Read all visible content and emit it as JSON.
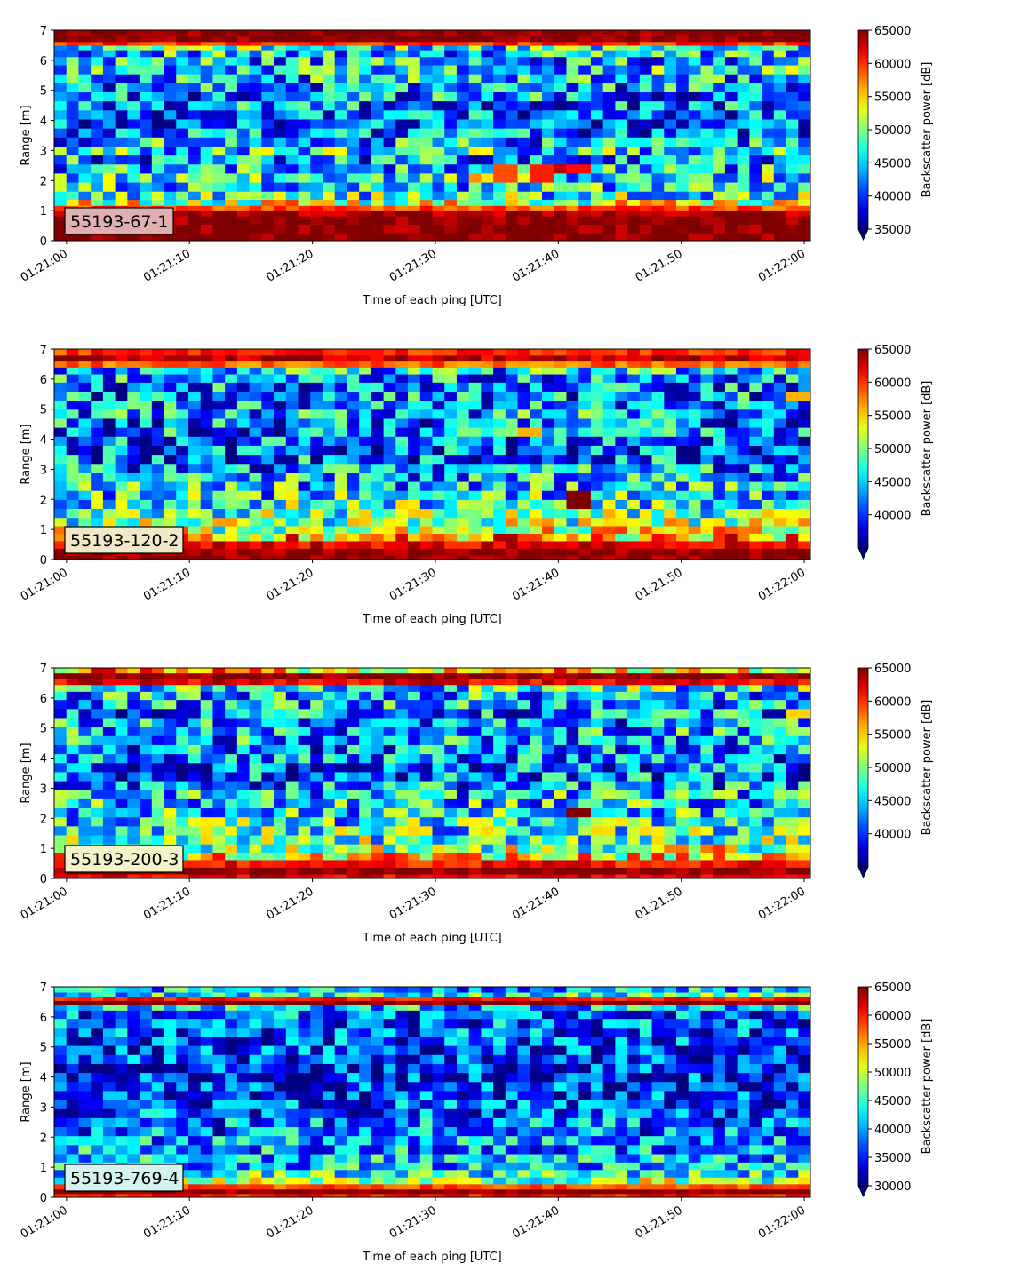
{
  "figure": {
    "colormap": "jet",
    "panels": [
      {
        "label": "55193-67-1",
        "label_box_color": "#e0b0b0"
      },
      {
        "label": "55193-120-2",
        "label_box_color": "#f0e8c8"
      },
      {
        "label": "55193-200-3",
        "label_box_color": "#f4f2c8"
      },
      {
        "label": "55193-769-4",
        "label_box_color": "#d4f2ee"
      }
    ]
  },
  "chart_data": [
    {
      "type": "heatmap",
      "title": "",
      "xlabel": "Time of each ping [UTC]",
      "ylabel": "Range [m]",
      "x_ticks": [
        "01:21:00",
        "01:21:10",
        "01:21:20",
        "01:21:30",
        "01:21:40",
        "01:21:50",
        "01:22:00"
      ],
      "x_range_seconds": [
        -1,
        60.5
      ],
      "y_ticks": [
        0,
        1,
        2,
        3,
        4,
        5,
        6,
        7
      ],
      "ylim": [
        0,
        7
      ],
      "colorbar": {
        "label": "Backscatter power [dB]",
        "min": 35000,
        "max": 65000,
        "ticks": [
          35000,
          40000,
          45000,
          50000,
          55000,
          60000,
          65000
        ],
        "extend": "min"
      },
      "annotation": "55193-67-1",
      "rows_range_m": [
        0.12,
        0.4,
        0.7,
        0.95,
        1.1,
        1.25,
        1.5,
        1.8,
        2.1,
        2.4,
        2.7,
        3.0,
        3.3,
        3.6,
        3.9,
        4.2,
        4.5,
        4.8,
        5.1,
        5.4,
        5.7,
        6.0,
        6.25,
        6.45,
        6.55,
        6.7,
        6.9
      ],
      "rows_power": [
        65000,
        65000,
        65000,
        64000,
        59000,
        52000,
        47500,
        46000,
        47000,
        45000,
        43500,
        46500,
        44500,
        42000,
        40000,
        41000,
        42500,
        43000,
        43500,
        44500,
        45500,
        44500,
        45000,
        47000,
        60000,
        65000,
        65000
      ],
      "highlights": [
        {
          "t": 33,
          "range_m": 2.1,
          "power": 57000
        },
        {
          "t": 35.5,
          "range_m": 2.3,
          "power": 59000
        },
        {
          "t": 38.5,
          "range_m": 2.3,
          "power": 60500
        },
        {
          "t": 40.5,
          "range_m": 2.4,
          "power": 63000
        },
        {
          "t": 41.5,
          "range_m": 2.35,
          "power": 61000
        },
        {
          "t": 52,
          "range_m": 5.6,
          "power": 51000
        },
        {
          "t": 57,
          "range_m": 5.7,
          "power": 53000
        },
        {
          "t": 59,
          "range_m": 5.8,
          "power": 54000
        }
      ]
    },
    {
      "type": "heatmap",
      "title": "",
      "xlabel": "Time of each ping [UTC]",
      "ylabel": "Range [m]",
      "x_ticks": [
        "01:21:00",
        "01:21:10",
        "01:21:20",
        "01:21:30",
        "01:21:40",
        "01:21:50",
        "01:22:00"
      ],
      "x_range_seconds": [
        -1,
        60.5
      ],
      "y_ticks": [
        0,
        1,
        2,
        3,
        4,
        5,
        6,
        7
      ],
      "ylim": [
        0,
        7
      ],
      "colorbar": {
        "label": "Backscatter power [dB]",
        "min": 35000,
        "max": 65000,
        "ticks": [
          40000,
          45000,
          50000,
          55000,
          60000,
          65000
        ],
        "extend": "min"
      },
      "annotation": "55193-120-2",
      "rows_range_m": [
        0.05,
        0.25,
        0.5,
        0.75,
        1.0,
        1.25,
        1.55,
        1.85,
        2.15,
        2.45,
        2.75,
        3.05,
        3.35,
        3.65,
        3.95,
        4.25,
        4.55,
        4.85,
        5.15,
        5.45,
        5.75,
        6.05,
        6.3,
        6.5,
        6.7,
        6.9
      ],
      "rows_power": [
        65000,
        65000,
        62000,
        56000,
        52000,
        50000,
        48500,
        47500,
        46500,
        45500,
        44500,
        43500,
        42000,
        41000,
        41500,
        42500,
        42500,
        44000,
        43000,
        42500,
        42500,
        43500,
        45000,
        58000,
        63000,
        60000
      ],
      "highlights": [
        {
          "t": 37.8,
          "range_m": 4.15,
          "power": 56000
        },
        {
          "t": 41.8,
          "range_m": 2.05,
          "power": 65000
        },
        {
          "t": 53,
          "range_m": 0.95,
          "power": 60000
        },
        {
          "t": 59.5,
          "range_m": 5.45,
          "power": 56000
        }
      ]
    },
    {
      "type": "heatmap",
      "title": "",
      "xlabel": "Time of each ping [UTC]",
      "ylabel": "Range [m]",
      "x_ticks": [
        "01:21:00",
        "01:21:10",
        "01:21:20",
        "01:21:30",
        "01:21:40",
        "01:21:50",
        "01:22:00"
      ],
      "x_range_seconds": [
        -1,
        60.5
      ],
      "y_ticks": [
        0,
        1,
        2,
        3,
        4,
        5,
        6,
        7
      ],
      "ylim": [
        0,
        7
      ],
      "colorbar": {
        "label": "Backscatter power [dB]",
        "min": 35000,
        "max": 65000,
        "ticks": [
          40000,
          45000,
          50000,
          55000,
          60000,
          65000
        ],
        "extend": "min"
      },
      "annotation": "55193-200-3",
      "rows_range_m": [
        0.05,
        0.25,
        0.5,
        0.75,
        1.0,
        1.3,
        1.6,
        1.9,
        2.2,
        2.5,
        2.8,
        3.1,
        3.4,
        3.7,
        4.0,
        4.3,
        4.6,
        4.9,
        5.2,
        5.5,
        5.8,
        6.1,
        6.35,
        6.55,
        6.75,
        6.92
      ],
      "rows_power": [
        62000,
        65000,
        61000,
        54000,
        50000,
        48500,
        47500,
        47000,
        46000,
        45500,
        45000,
        43500,
        42000,
        41500,
        42000,
        43000,
        44000,
        44500,
        43500,
        43000,
        43500,
        44500,
        47000,
        62000,
        65000,
        55000
      ],
      "highlights": [
        {
          "t": 41.8,
          "range_m": 2.1,
          "power": 65000
        },
        {
          "t": 53,
          "range_m": 0.85,
          "power": 60000
        },
        {
          "t": 59.5,
          "range_m": 5.45,
          "power": 55000
        }
      ]
    },
    {
      "type": "heatmap",
      "title": "",
      "xlabel": "Time of each ping [UTC]",
      "ylabel": "Range [m]",
      "x_ticks": [
        "01:21:00",
        "01:21:10",
        "01:21:20",
        "01:21:30",
        "01:21:40",
        "01:21:50",
        "01:22:00"
      ],
      "x_range_seconds": [
        -1,
        60.5
      ],
      "y_ticks": [
        0,
        1,
        2,
        3,
        4,
        5,
        6,
        7
      ],
      "ylim": [
        0,
        7
      ],
      "colorbar": {
        "label": "Backscatter power [dB]",
        "min": 30000,
        "max": 65000,
        "ticks": [
          30000,
          35000,
          40000,
          45000,
          50000,
          55000,
          60000,
          65000
        ],
        "extend": "min"
      },
      "annotation": "55193-769-4",
      "rows_range_m": [
        0.05,
        0.2,
        0.35,
        0.55,
        0.8,
        1.05,
        1.3,
        1.6,
        1.9,
        2.2,
        2.5,
        2.8,
        3.1,
        3.4,
        3.7,
        4.0,
        4.3,
        4.6,
        4.9,
        5.2,
        5.5,
        5.8,
        6.1,
        6.35,
        6.5,
        6.6,
        6.75,
        6.9
      ],
      "rows_power": [
        60000,
        65000,
        58000,
        48000,
        44000,
        41500,
        40500,
        40000,
        39500,
        38500,
        38000,
        37000,
        36500,
        36000,
        35500,
        35000,
        35000,
        35500,
        36000,
        36500,
        37000,
        37500,
        38000,
        41000,
        65000,
        60000,
        44000,
        41000
      ],
      "highlights": []
    }
  ]
}
